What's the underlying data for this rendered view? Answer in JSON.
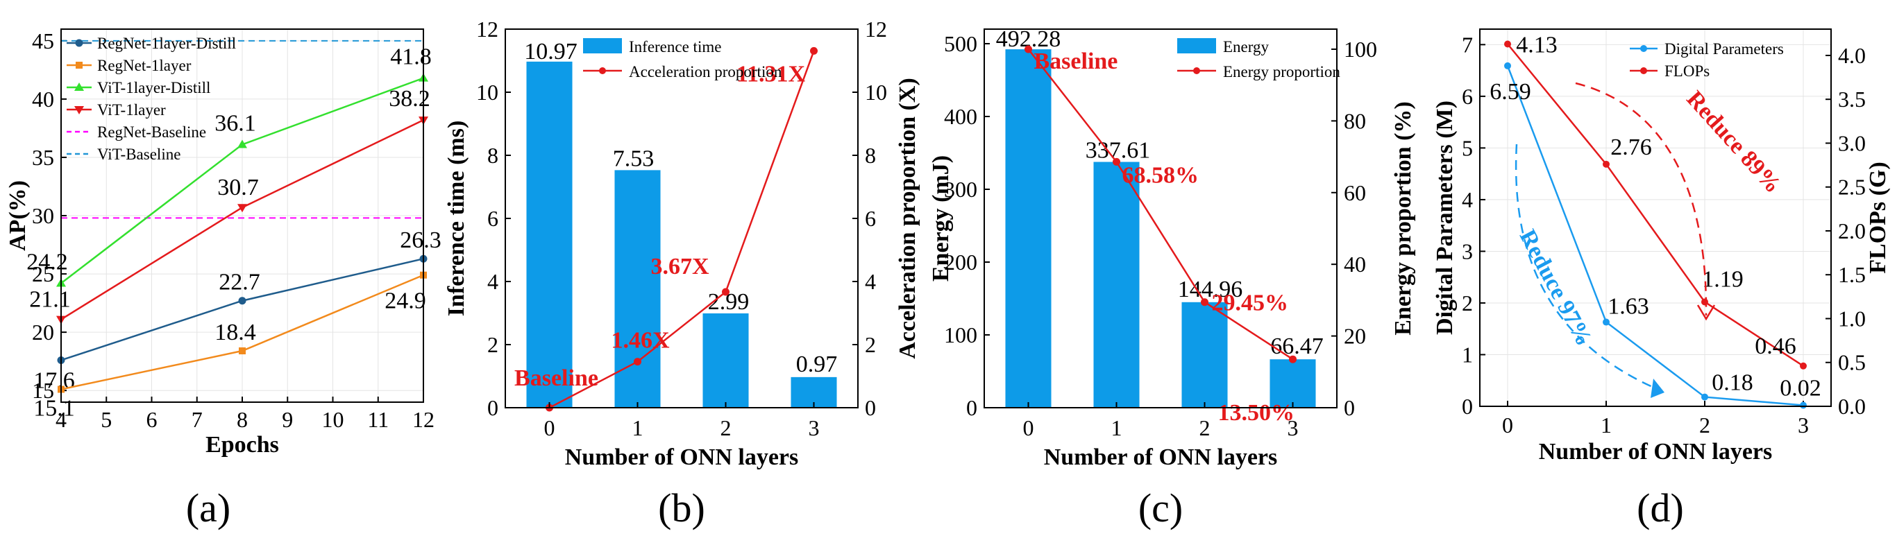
{
  "chart_data": [
    {
      "type": "line",
      "panel_label": "(a)",
      "xlabel": "Epochs",
      "ylabel": "AP(%)",
      "xlim": [
        4,
        12
      ],
      "ylim": [
        14,
        46
      ],
      "x_ticks": [
        4,
        5,
        6,
        7,
        8,
        9,
        10,
        11,
        12
      ],
      "y_ticks": [
        15,
        20,
        25,
        30,
        35,
        40,
        45
      ],
      "grid": true,
      "legend_position": "top-left",
      "series": [
        {
          "name": "RegNet-1layer-Distill",
          "x": [
            4,
            8,
            12
          ],
          "values": [
            17.6,
            22.7,
            26.3
          ],
          "labels": [
            "17.6",
            "22.7",
            "26.3"
          ],
          "color": "#1f5c8c",
          "marker": "circle"
        },
        {
          "name": "RegNet-1layer",
          "x": [
            4,
            8,
            12
          ],
          "values": [
            15.1,
            18.4,
            24.9
          ],
          "labels": [
            "15.1",
            "18.4",
            "24.9"
          ],
          "color": "#f28a1c",
          "marker": "square"
        },
        {
          "name": "ViT-1layer-Distill",
          "x": [
            4,
            8,
            12
          ],
          "values": [
            24.2,
            36.1,
            41.8
          ],
          "labels": [
            "24.2",
            "36.1",
            "41.8"
          ],
          "color": "#33e02e",
          "marker": "triangle-up"
        },
        {
          "name": "ViT-1layer",
          "x": [
            4,
            8,
            12
          ],
          "values": [
            21.1,
            30.7,
            38.2
          ],
          "labels": [
            "21.1",
            "30.7",
            "38.2"
          ],
          "color": "#e41a1c",
          "marker": "triangle-down"
        }
      ],
      "baselines": [
        {
          "name": "RegNet-Baseline",
          "value": 29.8,
          "color": "#ff00ff"
        },
        {
          "name": "ViT-Baseline",
          "value": 45.0,
          "color": "#2196d6"
        }
      ]
    },
    {
      "type": "bar",
      "panel_label": "(b)",
      "categories": [
        "0",
        "1",
        "2",
        "3"
      ],
      "xlabel": "Number of ONN layers",
      "ylabel": "Inference time (ms)",
      "y2label": "Acceleration proportion (X)",
      "ylim": [
        0,
        12
      ],
      "y2lim": [
        0,
        12
      ],
      "y_ticks": [
        0,
        2,
        4,
        6,
        8,
        10,
        12
      ],
      "y2_ticks": [
        0,
        2,
        4,
        6,
        8,
        10,
        12
      ],
      "legend_position": "top-center",
      "series": [
        {
          "name": "Inference time",
          "type": "bar",
          "values": [
            10.97,
            7.53,
            2.99,
            0.97
          ],
          "labels": [
            "10.97",
            "7.53",
            "2.99",
            "0.97"
          ],
          "color": "#0d9be8"
        },
        {
          "name": "Acceleration proportion",
          "type": "line",
          "axis": "right",
          "values": [
            0,
            1.46,
            3.67,
            11.31
          ],
          "labels": [
            "Baseline",
            "1.46X",
            "3.67X",
            "11.31X"
          ],
          "color": "#e41a1c"
        }
      ]
    },
    {
      "type": "bar",
      "panel_label": "(c)",
      "categories": [
        "0",
        "1",
        "2",
        "3"
      ],
      "xlabel": "Number of ONN layers",
      "ylabel": "Energy (mJ)",
      "y2label": "Energy proportion (%)",
      "ylim": [
        0,
        520
      ],
      "y2lim": [
        0,
        105.6
      ],
      "y_ticks": [
        0,
        100,
        200,
        300,
        400,
        500
      ],
      "y2_ticks": [
        0,
        20,
        40,
        60,
        80,
        100
      ],
      "legend_position": "top-right",
      "series": [
        {
          "name": "Energy",
          "type": "bar",
          "values": [
            492.28,
            337.61,
            144.96,
            66.47
          ],
          "labels": [
            "492.28",
            "337.61",
            "144.96",
            "66.47"
          ],
          "color": "#0d9be8"
        },
        {
          "name": "Energy proportion",
          "type": "line",
          "axis": "right",
          "values": [
            100,
            68.58,
            29.45,
            13.5
          ],
          "labels": [
            "Baseline",
            "68.58%",
            "29.45%",
            "13.50%"
          ],
          "color": "#e41a1c"
        }
      ]
    },
    {
      "type": "line",
      "panel_label": "(d)",
      "categories": [
        "0",
        "1",
        "2",
        "3"
      ],
      "xlabel": "Number of ONN layers",
      "ylabel": "Digital Parameters (M)",
      "y2label": "FLOPs (G)",
      "ylim": [
        0,
        7.3
      ],
      "y2lim": [
        0,
        4.3
      ],
      "y_ticks": [
        0,
        1,
        2,
        3,
        4,
        5,
        6,
        7
      ],
      "y2_ticks": [
        0.0,
        0.5,
        1.0,
        1.5,
        2.0,
        2.5,
        3.0,
        3.5,
        4.0
      ],
      "grid": true,
      "legend_position": "top-right",
      "series": [
        {
          "name": "Digital Parameters",
          "axis": "left",
          "values": [
            6.59,
            1.63,
            0.18,
            0.02
          ],
          "labels": [
            "6.59",
            "1.63",
            "0.18",
            "0.02"
          ],
          "color": "#1a9bef"
        },
        {
          "name": "FLOPs",
          "axis": "right",
          "values": [
            4.13,
            2.76,
            1.19,
            0.46
          ],
          "labels": [
            "4.13",
            "2.76",
            "1.19",
            "0.46"
          ],
          "color": "#e41a1c"
        }
      ],
      "annotations": [
        {
          "text": "Reduce 89%",
          "color": "#e41a1c"
        },
        {
          "text": "Reduce 97%",
          "color": "#1a9bef"
        }
      ]
    }
  ]
}
